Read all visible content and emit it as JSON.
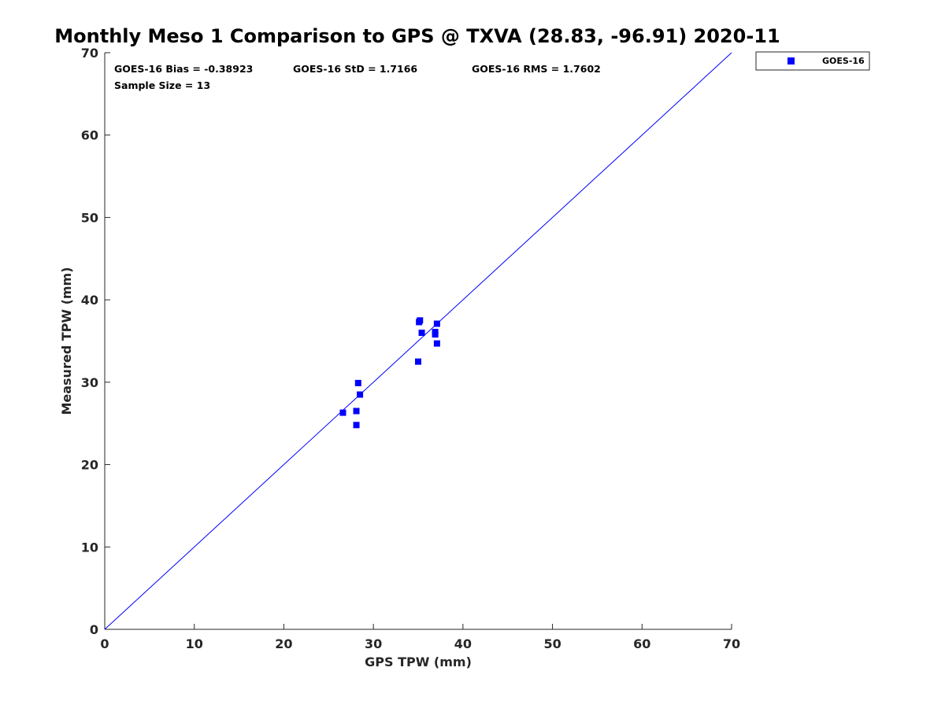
{
  "chart_data": {
    "type": "scatter",
    "title": "Monthly Meso 1 Comparison to GPS @ TXVA (28.83, -96.91) 2020-11",
    "xlabel": "GPS TPW (mm)",
    "ylabel": "Measured TPW (mm)",
    "xlim": [
      0,
      70
    ],
    "ylim": [
      0,
      70
    ],
    "xticks": [
      0,
      10,
      20,
      30,
      40,
      50,
      60,
      70
    ],
    "yticks": [
      0,
      10,
      20,
      30,
      40,
      50,
      60,
      70
    ],
    "grid": false,
    "legend_position": "outside-top-right",
    "reference_line": {
      "from": [
        0,
        0
      ],
      "to": [
        70,
        70
      ],
      "color": "#0000ff"
    },
    "annotations": [
      "GOES-16 Bias = -0.38923",
      "GOES-16 StD = 1.7166",
      "GOES-16 RMS = 1.7602",
      "Sample Size = 13"
    ],
    "series": [
      {
        "name": "GOES-16",
        "color": "#0000ff",
        "marker": "square",
        "points": [
          {
            "x": 26.6,
            "y": 26.3
          },
          {
            "x": 28.1,
            "y": 24.8
          },
          {
            "x": 28.1,
            "y": 26.5
          },
          {
            "x": 28.3,
            "y": 29.9
          },
          {
            "x": 28.5,
            "y": 28.5
          },
          {
            "x": 35.0,
            "y": 32.5
          },
          {
            "x": 35.1,
            "y": 37.3
          },
          {
            "x": 35.2,
            "y": 37.5
          },
          {
            "x": 35.4,
            "y": 36.0
          },
          {
            "x": 36.9,
            "y": 35.8
          },
          {
            "x": 36.9,
            "y": 36.1
          },
          {
            "x": 37.1,
            "y": 37.1
          },
          {
            "x": 37.1,
            "y": 34.7
          }
        ]
      }
    ]
  }
}
